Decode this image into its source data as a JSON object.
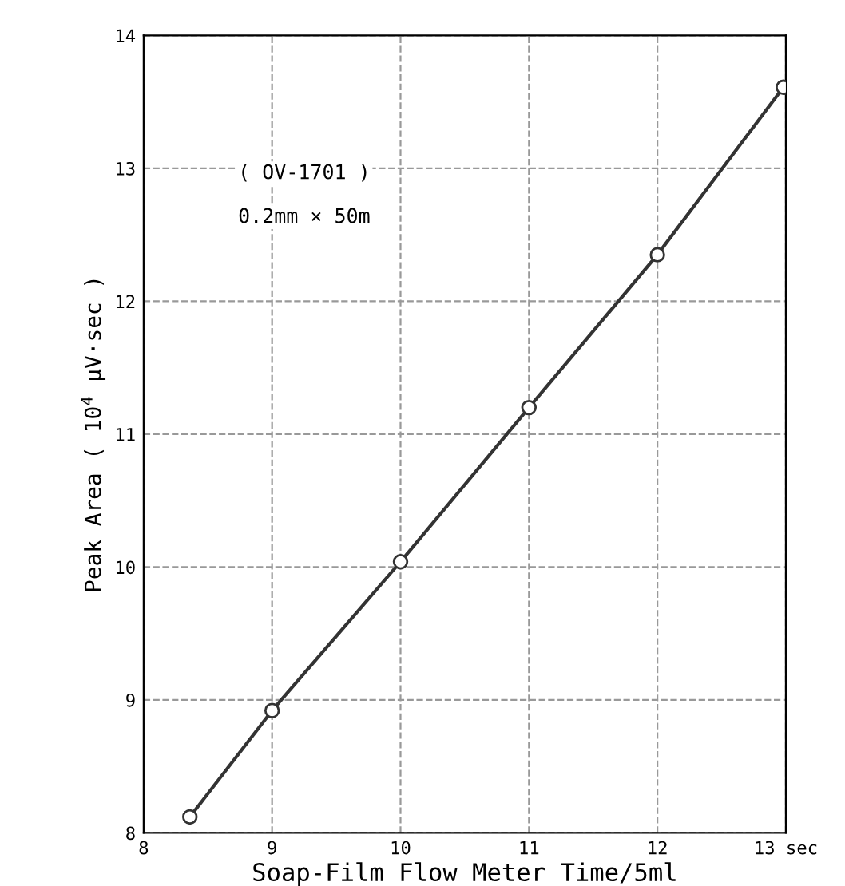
{
  "chart_data": {
    "type": "line",
    "xlabel": "Soap-Film Flow Meter Time/5ml",
    "ylabel": "Peak Area ( 10$^{4}$ μV·sec )",
    "annotations": [
      "( OV-1701 )",
      "0.2mm × 50m"
    ],
    "x": [
      8.36,
      9,
      10,
      11,
      12,
      12.98
    ],
    "series": [
      {
        "color": "#333333",
        "values": [
          8.12,
          8.92,
          10.04,
          11.2,
          12.35,
          13.61
        ]
      }
    ],
    "xlim": [
      8,
      13
    ],
    "xticks": [
      8,
      9,
      10,
      11,
      12,
      {
        "value": 13,
        "label": "13 sec"
      }
    ],
    "ylim": [
      8,
      14
    ],
    "yticks": [
      8,
      9,
      10,
      11,
      12,
      13,
      14
    ],
    "grid": true,
    "marker": "circle",
    "line_style": "solid"
  }
}
